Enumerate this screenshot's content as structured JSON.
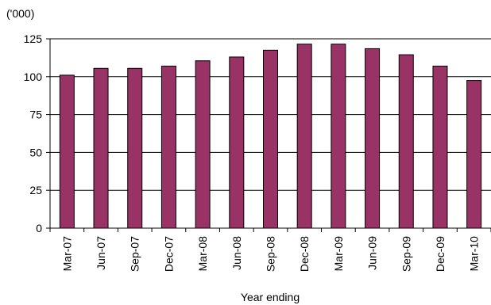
{
  "chart_data": {
    "type": "bar",
    "unit_label": "('000)",
    "xlabel": "Year ending",
    "ylabel": "",
    "categories": [
      "Mar-07",
      "Jun-07",
      "Sep-07",
      "Dec-07",
      "Mar-08",
      "Jun-08",
      "Sep-08",
      "Dec-08",
      "Mar-09",
      "Jun-09",
      "Sep-09",
      "Dec-09",
      "Mar-10"
    ],
    "values": [
      101,
      105.5,
      105.5,
      107,
      110.5,
      113,
      117.5,
      121.5,
      121.5,
      118.5,
      114.5,
      107,
      97.5
    ],
    "ylim": [
      0,
      125
    ],
    "yticks": [
      "0",
      "25",
      "50",
      "75",
      "100",
      "125"
    ],
    "grid": true,
    "legend": "none",
    "colors": {
      "bar": "#993366",
      "bar_stroke": "#000000",
      "grid": "#000000"
    }
  }
}
